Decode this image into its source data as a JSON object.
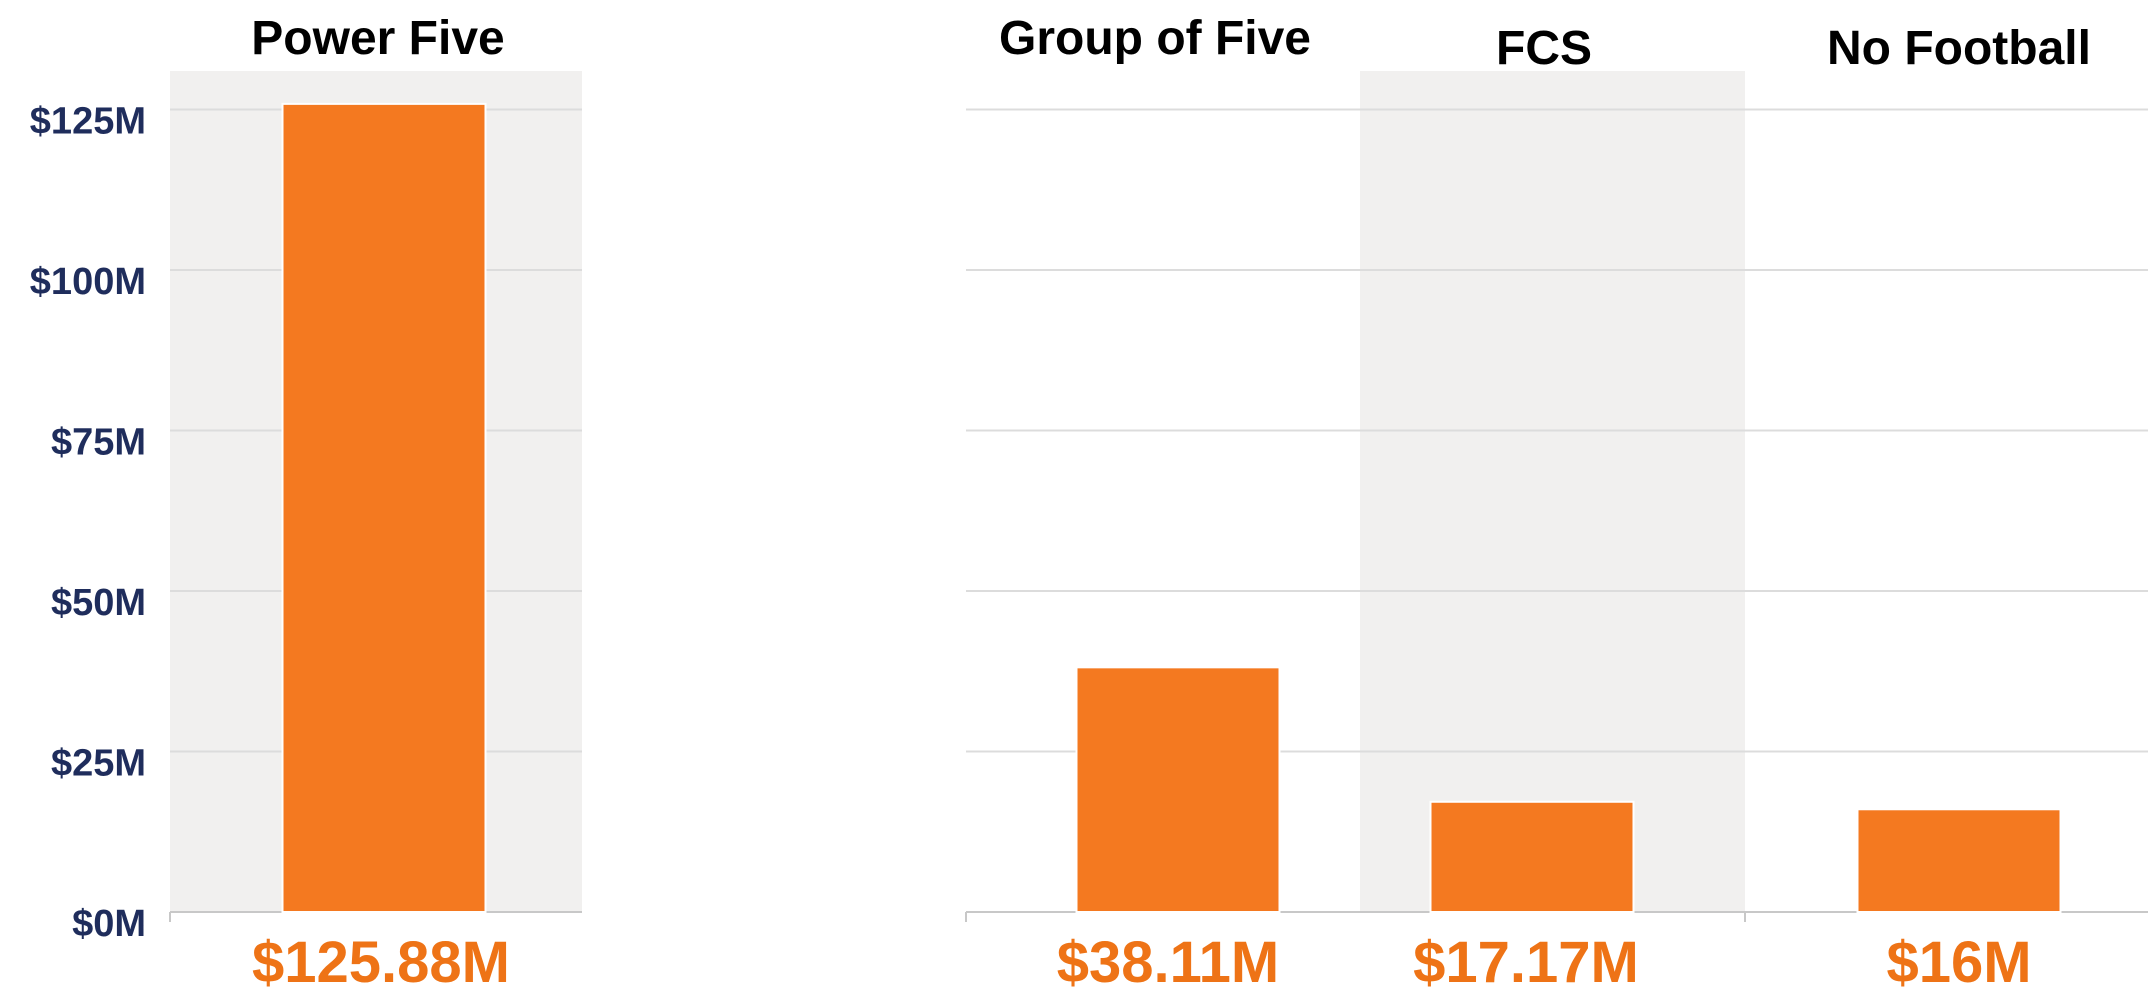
{
  "chart_data": {
    "type": "bar",
    "categories": [
      "Power Five",
      "Group of Five",
      "FCS",
      "No Football"
    ],
    "values": [
      125.88,
      38.11,
      17.17,
      16
    ],
    "value_labels": [
      "$125.88M",
      "$38.11M",
      "$17.17M",
      "$16M"
    ],
    "color": "#f47920",
    "ylim": [
      0,
      131
    ],
    "yticks": [
      {
        "value": 0,
        "label": "$0M"
      },
      {
        "value": 25,
        "label": "$25M"
      },
      {
        "value": 50,
        "label": "$50M"
      },
      {
        "value": 75,
        "label": "$75M"
      },
      {
        "value": 100,
        "label": "$100M"
      },
      {
        "value": 125,
        "label": "$125M"
      }
    ],
    "grid": true
  }
}
